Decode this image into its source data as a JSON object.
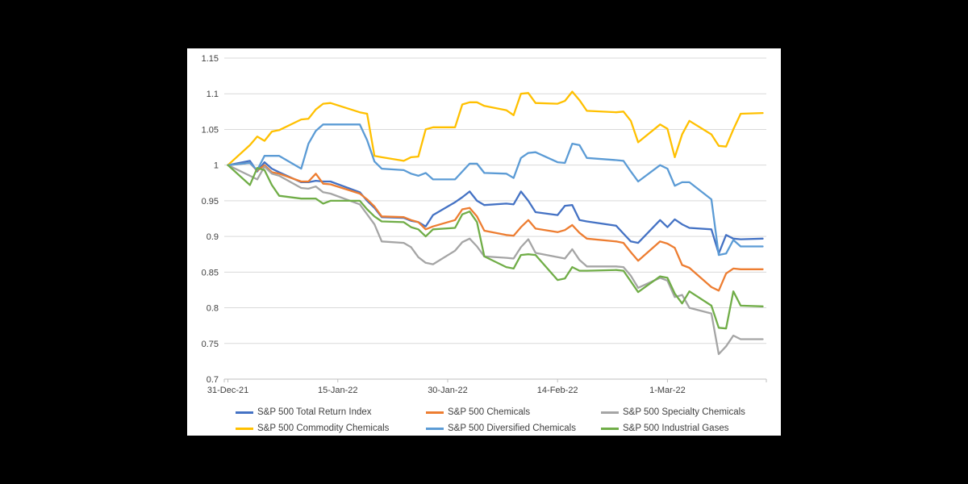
{
  "background_color": "#000000",
  "panel_color": "#FFFFFF",
  "chart_data": {
    "type": "line",
    "title": "",
    "ylabel": "",
    "xlabel": "",
    "ylim": [
      0.7,
      1.15
    ],
    "grid": true,
    "grid_color": "#D9D9D9",
    "axis_color": "#BFBFBF",
    "text_color": "#404040",
    "legend_position": "bottom",
    "y_tick_labels": [
      "0.7",
      "0.75",
      "0.8",
      "0.85",
      "0.9",
      "0.95",
      "1",
      "1.05",
      "1.1",
      "1.15"
    ],
    "y_tick_values": [
      0.7,
      0.75,
      0.8,
      0.85,
      0.9,
      0.95,
      1.0,
      1.05,
      1.1,
      1.15
    ],
    "x_tick_labels": [
      "31-Dec-21",
      "15-Jan-22",
      "30-Jan-22",
      "14-Feb-22",
      "1-Mar-22"
    ],
    "x_tick_days": [
      0,
      15,
      30,
      45,
      60
    ],
    "x_range_days": [
      -0.5,
      73.5
    ],
    "dates": [
      "31-Dec-21",
      "3-Jan-22",
      "4-Jan-22",
      "5-Jan-22",
      "6-Jan-22",
      "7-Jan-22",
      "10-Jan-22",
      "11-Jan-22",
      "12-Jan-22",
      "13-Jan-22",
      "14-Jan-22",
      "18-Jan-22",
      "19-Jan-22",
      "20-Jan-22",
      "21-Jan-22",
      "24-Jan-22",
      "25-Jan-22",
      "26-Jan-22",
      "27-Jan-22",
      "28-Jan-22",
      "31-Jan-22",
      "1-Feb-22",
      "2-Feb-22",
      "3-Feb-22",
      "4-Feb-22",
      "7-Feb-22",
      "8-Feb-22",
      "9-Feb-22",
      "10-Feb-22",
      "11-Feb-22",
      "14-Feb-22",
      "15-Feb-22",
      "16-Feb-22",
      "17-Feb-22",
      "18-Feb-22",
      "22-Feb-22",
      "23-Feb-22",
      "24-Feb-22",
      "25-Feb-22",
      "28-Feb-22",
      "1-Mar-22",
      "2-Mar-22",
      "3-Mar-22",
      "4-Mar-22",
      "7-Mar-22",
      "8-Mar-22",
      "9-Mar-22",
      "10-Mar-22",
      "11-Mar-22",
      "14-Mar-22"
    ],
    "day_offsets": [
      0,
      3,
      4,
      5,
      6,
      7,
      10,
      11,
      12,
      13,
      14,
      18,
      19,
      20,
      21,
      24,
      25,
      26,
      27,
      28,
      31,
      32,
      33,
      34,
      35,
      38,
      39,
      40,
      41,
      42,
      45,
      46,
      47,
      48,
      49,
      53,
      54,
      55,
      56,
      59,
      60,
      61,
      62,
      63,
      66,
      67,
      68,
      69,
      70,
      73
    ],
    "series": [
      {
        "name": "S&P 500 Total Return Index",
        "color": "#4472C4",
        "values": [
          1.0,
          1.006,
          0.991,
          1.004,
          0.995,
          0.99,
          0.976,
          0.976,
          0.978,
          0.977,
          0.977,
          0.962,
          0.95,
          0.94,
          0.927,
          0.926,
          0.922,
          0.92,
          0.914,
          0.93,
          0.948,
          0.955,
          0.963,
          0.95,
          0.944,
          0.946,
          0.945,
          0.963,
          0.95,
          0.934,
          0.93,
          0.943,
          0.944,
          0.923,
          0.921,
          0.915,
          0.904,
          0.893,
          0.891,
          0.923,
          0.913,
          0.924,
          0.917,
          0.912,
          0.91,
          0.876,
          0.902,
          0.897,
          0.896,
          0.897
        ]
      },
      {
        "name": "S&P 500 Chemicals",
        "color": "#ED7D31",
        "values": [
          1.0,
          1.003,
          0.992,
          1.0,
          0.99,
          0.988,
          0.977,
          0.977,
          0.988,
          0.974,
          0.973,
          0.96,
          0.952,
          0.942,
          0.928,
          0.927,
          0.923,
          0.92,
          0.91,
          0.914,
          0.923,
          0.938,
          0.94,
          0.928,
          0.908,
          0.902,
          0.901,
          0.913,
          0.923,
          0.911,
          0.906,
          0.909,
          0.916,
          0.905,
          0.897,
          0.893,
          0.891,
          0.878,
          0.866,
          0.893,
          0.89,
          0.884,
          0.86,
          0.856,
          0.829,
          0.824,
          0.848,
          0.855,
          0.854,
          0.854
        ]
      },
      {
        "name": "S&P 500 Specialty Chemicals",
        "color": "#A5A5A5",
        "values": [
          1.0,
          0.985,
          0.98,
          0.998,
          0.988,
          0.985,
          0.968,
          0.967,
          0.97,
          0.962,
          0.96,
          0.945,
          0.931,
          0.917,
          0.893,
          0.891,
          0.885,
          0.871,
          0.863,
          0.861,
          0.88,
          0.892,
          0.897,
          0.886,
          0.872,
          0.87,
          0.869,
          0.885,
          0.896,
          0.877,
          0.871,
          0.869,
          0.882,
          0.867,
          0.858,
          0.858,
          0.857,
          0.845,
          0.828,
          0.842,
          0.838,
          0.815,
          0.818,
          0.8,
          0.792,
          0.735,
          0.746,
          0.761,
          0.756,
          0.756
        ]
      },
      {
        "name": "S&P 500 Commodity Chemicals",
        "color": "#FFC000",
        "values": [
          1.0,
          1.028,
          1.04,
          1.034,
          1.047,
          1.049,
          1.064,
          1.065,
          1.078,
          1.086,
          1.087,
          1.074,
          1.072,
          1.013,
          1.011,
          1.006,
          1.011,
          1.012,
          1.05,
          1.053,
          1.053,
          1.085,
          1.088,
          1.088,
          1.083,
          1.077,
          1.07,
          1.1,
          1.101,
          1.087,
          1.086,
          1.09,
          1.103,
          1.091,
          1.076,
          1.074,
          1.075,
          1.062,
          1.032,
          1.057,
          1.051,
          1.011,
          1.043,
          1.062,
          1.043,
          1.027,
          1.026,
          1.05,
          1.072,
          1.073
        ]
      },
      {
        "name": "S&P 500 Diversified Chemicals",
        "color": "#5B9BD5",
        "values": [
          1.0,
          1.003,
          0.993,
          1.013,
          1.013,
          1.013,
          0.995,
          1.03,
          1.048,
          1.057,
          1.057,
          1.057,
          1.035,
          1.005,
          0.995,
          0.993,
          0.988,
          0.985,
          0.989,
          0.98,
          0.98,
          0.991,
          1.002,
          1.002,
          0.989,
          0.988,
          0.982,
          1.01,
          1.017,
          1.018,
          1.004,
          1.003,
          1.03,
          1.028,
          1.01,
          1.007,
          1.006,
          0.991,
          0.977,
          1.0,
          0.995,
          0.971,
          0.976,
          0.976,
          0.952,
          0.874,
          0.876,
          0.895,
          0.886,
          0.886
        ]
      },
      {
        "name": "S&P 500 Industrial Gases",
        "color": "#70AD47",
        "values": [
          1.0,
          0.972,
          0.996,
          0.993,
          0.972,
          0.957,
          0.953,
          0.953,
          0.953,
          0.946,
          0.95,
          0.95,
          0.938,
          0.928,
          0.921,
          0.92,
          0.913,
          0.91,
          0.9,
          0.91,
          0.912,
          0.931,
          0.935,
          0.92,
          0.872,
          0.857,
          0.855,
          0.874,
          0.875,
          0.874,
          0.839,
          0.841,
          0.857,
          0.852,
          0.852,
          0.853,
          0.852,
          0.837,
          0.822,
          0.844,
          0.842,
          0.82,
          0.806,
          0.823,
          0.803,
          0.772,
          0.771,
          0.823,
          0.803,
          0.802
        ]
      }
    ]
  }
}
